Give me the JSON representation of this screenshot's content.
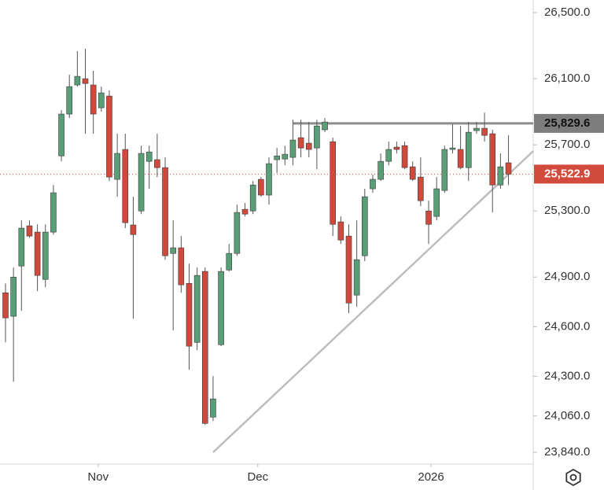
{
  "chart_data": {
    "type": "candlestick",
    "up_color": "#5a9e78",
    "down_color": "#cf4a3c",
    "open": [
      24805,
      24663,
      24967,
      25210,
      25172,
      24886,
      25172,
      25633,
      25886,
      26062,
      26100,
      26062,
      25924,
      25995,
      25491,
      25672,
      25215,
      25300,
      25600,
      25610,
      25562,
      25043,
      25077,
      24862,
      24505,
      24934,
      24053,
      24491,
      24943,
      25043,
      25310,
      25300,
      25491,
      25396,
      25610,
      25614,
      25624,
      25743,
      25710,
      25681,
      25791,
      25719,
      25234,
      25148,
      24791,
      25029,
      25434,
      25491,
      25600,
      25686,
      25695,
      25567,
      25505,
      25300,
      25267,
      25424,
      25672,
      25672,
      25562,
      25786,
      25800,
      25767,
      25457,
      25591
    ],
    "high": [
      24862,
      24958,
      25243,
      25243,
      25219,
      25219,
      25457,
      25910,
      26124,
      26267,
      26281,
      26148,
      26052,
      26029,
      25767,
      25767,
      25386,
      25695,
      25695,
      25767,
      25624,
      25243,
      25148,
      24981,
      24958,
      24958,
      24301,
      24958,
      25100,
      25338,
      25348,
      25481,
      25505,
      25624,
      25681,
      25695,
      25852,
      25852,
      25838,
      25852,
      25862,
      25743,
      25267,
      25219,
      25243,
      25434,
      25519,
      25648,
      25719,
      25719,
      25719,
      25600,
      25624,
      25362,
      25505,
      25695,
      25824,
      25814,
      25838,
      25838,
      25895,
      25791,
      25648,
      25757
    ],
    "low": [
      24505,
      24267,
      24696,
      25138,
      24815,
      24839,
      25157,
      25600,
      25862,
      26052,
      25767,
      25767,
      25900,
      25481,
      25386,
      25196,
      24648,
      25281,
      25434,
      25505,
      25005,
      24577,
      24805,
      24339,
      24458,
      24006,
      24029,
      24482,
      24934,
      25029,
      25267,
      25281,
      25386,
      25338,
      25529,
      25576,
      25576,
      25624,
      25624,
      25553,
      25776,
      25148,
      25100,
      24682,
      24720,
      24996,
      25410,
      25481,
      25576,
      25648,
      25553,
      25481,
      25329,
      25100,
      25243,
      25410,
      25648,
      25553,
      25481,
      25767,
      25719,
      25291,
      25434,
      25457
    ],
    "close": [
      24653,
      24900,
      25196,
      25148,
      24910,
      25172,
      25410,
      25886,
      26052,
      26114,
      26071,
      25886,
      26014,
      25505,
      25648,
      25229,
      25157,
      25648,
      25657,
      25562,
      25029,
      25077,
      24853,
      24482,
      24910,
      24015,
      24163,
      24934,
      25043,
      25291,
      25281,
      25457,
      25396,
      25586,
      25633,
      25643,
      25729,
      25681,
      25672,
      25814,
      25838,
      25219,
      25124,
      24743,
      25005,
      25386,
      25491,
      25600,
      25672,
      25672,
      25562,
      25491,
      25362,
      25219,
      25434,
      25672,
      25681,
      25562,
      25776,
      25800,
      25757,
      25457,
      25567,
      25522.9
    ],
    "xlim": [
      -0.69,
      66.1
    ],
    "xticks": [
      {
        "value": 11.6,
        "label": "Nov"
      },
      {
        "value": 31.6,
        "label": "Dec"
      },
      {
        "value": 53.3,
        "label": "2026"
      }
    ],
    "ylim": [
      23769,
      26576
    ],
    "yticks": [
      {
        "value": 26500,
        "label": "26,500.0"
      },
      {
        "value": 26100,
        "label": "26,100.0"
      },
      {
        "value": 25700,
        "label": "25,700.0"
      },
      {
        "value": 25300,
        "label": "25,300.0"
      },
      {
        "value": 24900,
        "label": "24,900.0"
      },
      {
        "value": 24600,
        "label": "24,600.0"
      },
      {
        "value": 24300,
        "label": "24,300.0"
      },
      {
        "value": 24060,
        "label": "24,060.0"
      },
      {
        "value": 23840,
        "label": "23,840.0"
      }
    ],
    "price_labels": [
      {
        "value": 25829.6,
        "label": "25,829.6",
        "color": "#7d7d7d"
      },
      {
        "value": 25522.9,
        "label": "25,522.9",
        "color": "#d24a3c"
      }
    ],
    "resistance_line": {
      "x": [
        36,
        66.1
      ],
      "values": [
        25829.6,
        25829.6
      ],
      "color": "#8c8c8c"
    },
    "trend_line": {
      "x": [
        26,
        66.1
      ],
      "values": [
        23840,
        25662
      ],
      "color": "#bdbdbd"
    }
  }
}
